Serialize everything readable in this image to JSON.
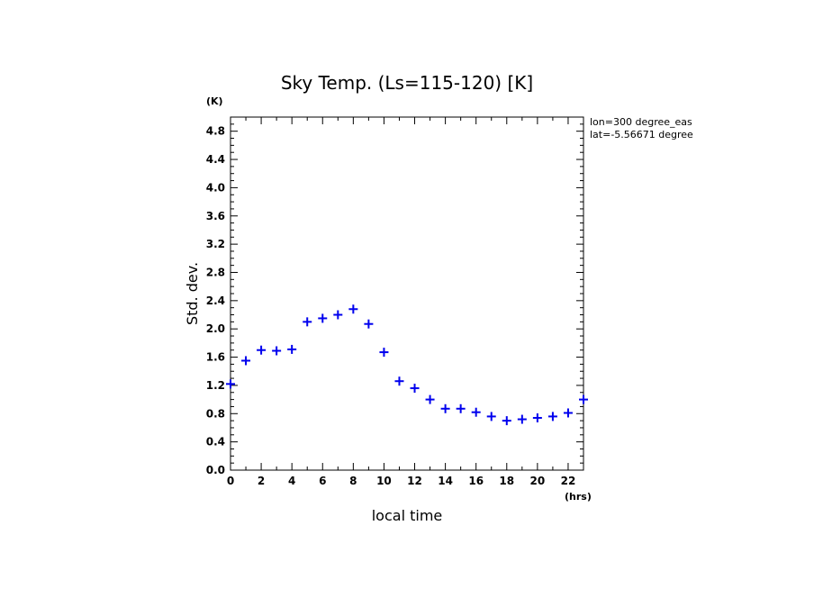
{
  "chart_data": {
    "type": "scatter",
    "title": "Sky Temp. (Ls=115-120) [K]",
    "xlabel": "local time",
    "ylabel": "Std. dev.",
    "x_unit": "(hrs)",
    "y_unit": "(K)",
    "xlim": [
      0,
      23
    ],
    "ylim": [
      0,
      5
    ],
    "xticks": [
      "0",
      "2",
      "4",
      "6",
      "8",
      "10",
      "12",
      "14",
      "16",
      "18",
      "20",
      "22"
    ],
    "yticks": [
      "0.0",
      "0.4",
      "0.8",
      "1.2",
      "1.6",
      "2.0",
      "2.4",
      "2.8",
      "3.2",
      "3.6",
      "4.0",
      "4.4",
      "4.8"
    ],
    "annotations": [
      "lon=300 degree_eas",
      "lat=-5.56671 degree"
    ],
    "marker": "+",
    "marker_color": "#0000ee",
    "grid": false,
    "series": [
      {
        "x": [
          0,
          1,
          2,
          3,
          4,
          5,
          6,
          7,
          8,
          9,
          10,
          11,
          12,
          13,
          14,
          15,
          16,
          17,
          18,
          19,
          20,
          21,
          22,
          23
        ],
        "values": [
          1.22,
          1.55,
          1.7,
          1.69,
          1.71,
          2.1,
          2.15,
          2.2,
          2.28,
          2.07,
          1.67,
          1.26,
          1.16,
          1.0,
          0.87,
          0.87,
          0.82,
          0.76,
          0.7,
          0.72,
          0.74,
          0.76,
          0.81,
          1.0
        ]
      }
    ]
  }
}
